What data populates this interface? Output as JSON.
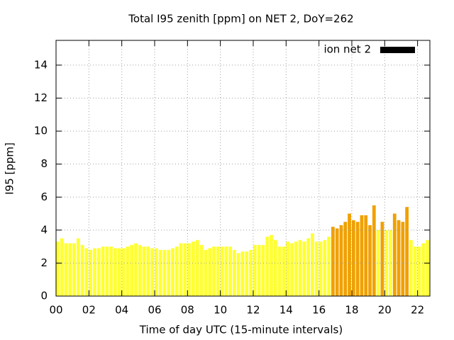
{
  "chart_data": {
    "type": "bar",
    "title": "Total I95 zenith [ppm] on NET 2, DoY=262",
    "xlabel": "Time of day UTC (15-minute intervals)",
    "ylabel": "I95 [ppm]",
    "xlim": [
      0,
      22.75
    ],
    "ylim": [
      0,
      15.5
    ],
    "xticks": [
      {
        "value": 0,
        "label": "00"
      },
      {
        "value": 2,
        "label": "02"
      },
      {
        "value": 4,
        "label": "04"
      },
      {
        "value": 6,
        "label": "06"
      },
      {
        "value": 8,
        "label": "08"
      },
      {
        "value": 10,
        "label": "10"
      },
      {
        "value": 12,
        "label": "12"
      },
      {
        "value": 14,
        "label": "14"
      },
      {
        "value": 16,
        "label": "16"
      },
      {
        "value": 18,
        "label": "18"
      },
      {
        "value": 20,
        "label": "20"
      },
      {
        "value": 22,
        "label": "22"
      }
    ],
    "yticks": [
      0,
      2,
      4,
      6,
      8,
      10,
      12,
      14
    ],
    "grid": true,
    "legend": "top-right",
    "x": [
      0,
      0.25,
      0.5,
      0.75,
      1,
      1.25,
      1.5,
      1.75,
      2,
      2.25,
      2.5,
      2.75,
      3,
      3.25,
      3.5,
      3.75,
      4,
      4.25,
      4.5,
      4.75,
      5,
      5.25,
      5.5,
      5.75,
      6,
      6.25,
      6.5,
      6.75,
      7,
      7.25,
      7.5,
      7.75,
      8,
      8.25,
      8.5,
      8.75,
      9,
      9.25,
      9.5,
      9.75,
      10,
      10.25,
      10.5,
      10.75,
      11,
      11.25,
      11.5,
      11.75,
      12,
      12.25,
      12.5,
      12.75,
      13,
      13.25,
      13.5,
      13.75,
      14,
      14.25,
      14.5,
      14.75,
      15,
      15.25,
      15.5,
      15.75,
      16,
      16.25,
      16.5,
      16.75,
      17,
      17.25,
      17.5,
      17.75,
      18,
      18.25,
      18.5,
      18.75,
      19,
      19.25,
      19.5,
      19.75,
      20,
      20.25,
      20.5,
      20.75,
      21,
      21.25,
      21.5,
      21.75,
      22,
      22.25,
      22.5
    ],
    "series": [
      {
        "name": "ion net 2",
        "color": "#000000",
        "values": [
          3.3,
          3.5,
          3.2,
          3.2,
          3.2,
          3.5,
          3.1,
          2.9,
          2.8,
          2.9,
          2.9,
          3.0,
          3.0,
          3.0,
          2.9,
          2.9,
          2.9,
          3.0,
          3.1,
          3.2,
          3.1,
          3.0,
          3.0,
          2.9,
          2.9,
          2.8,
          2.8,
          2.8,
          2.9,
          3.0,
          3.2,
          3.2,
          3.2,
          3.3,
          3.4,
          3.1,
          2.8,
          2.9,
          3.0,
          3.0,
          3.0,
          3.0,
          3.0,
          2.8,
          2.6,
          2.7,
          2.7,
          2.8,
          3.1,
          3.1,
          3.1,
          3.6,
          3.7,
          3.4,
          3.0,
          3.0,
          3.3,
          3.2,
          3.3,
          3.4,
          3.3,
          3.5,
          3.8,
          3.3,
          3.3,
          3.4,
          3.6,
          4.2,
          4.1,
          4.3,
          4.5,
          5.0,
          4.6,
          4.5,
          4.9,
          4.9,
          4.3,
          5.5,
          4.0,
          4.5,
          4.0,
          4.0,
          5.0,
          4.6,
          4.5,
          5.4,
          3.4,
          3.0,
          3.0,
          3.2,
          3.4
        ],
        "colors": [
          "#ffff33",
          "#ffff33",
          "#ffff33",
          "#ffff33",
          "#ffff33",
          "#ffff33",
          "#ffff33",
          "#ffff33",
          "#ffff33",
          "#ffff33",
          "#ffff33",
          "#ffff33",
          "#ffff33",
          "#ffff33",
          "#ffff33",
          "#ffff33",
          "#ffff33",
          "#ffff33",
          "#ffff33",
          "#ffff33",
          "#ffff33",
          "#ffff33",
          "#ffff33",
          "#ffff33",
          "#ffff33",
          "#ffff33",
          "#ffff33",
          "#ffff33",
          "#ffff33",
          "#ffff33",
          "#ffff33",
          "#ffff33",
          "#ffff33",
          "#ffff33",
          "#ffff33",
          "#ffff33",
          "#ffff33",
          "#ffff33",
          "#ffff33",
          "#ffff33",
          "#ffff33",
          "#ffff33",
          "#ffff33",
          "#ffff33",
          "#ffff33",
          "#ffff33",
          "#ffff33",
          "#ffff33",
          "#ffff33",
          "#ffff33",
          "#ffff33",
          "#ffff33",
          "#ffff33",
          "#ffff33",
          "#ffff33",
          "#ffff33",
          "#ffff33",
          "#ffff33",
          "#ffff33",
          "#ffff33",
          "#ffff33",
          "#ffff33",
          "#ffff33",
          "#ffff33",
          "#ffff33",
          "#ffff33",
          "#ffff33",
          "#f0a000",
          "#f0a000",
          "#f0a000",
          "#f0a000",
          "#f0a000",
          "#f0a000",
          "#f0a000",
          "#f0a000",
          "#f0a000",
          "#f0a000",
          "#f0a000",
          "#ffff33",
          "#f0a000",
          "#ffff33",
          "#ffff33",
          "#f0a000",
          "#f0a000",
          "#f0a000",
          "#f0a000",
          "#ffff33",
          "#ffff33",
          "#ffff33",
          "#ffff33",
          "#ffff33"
        ]
      }
    ]
  }
}
